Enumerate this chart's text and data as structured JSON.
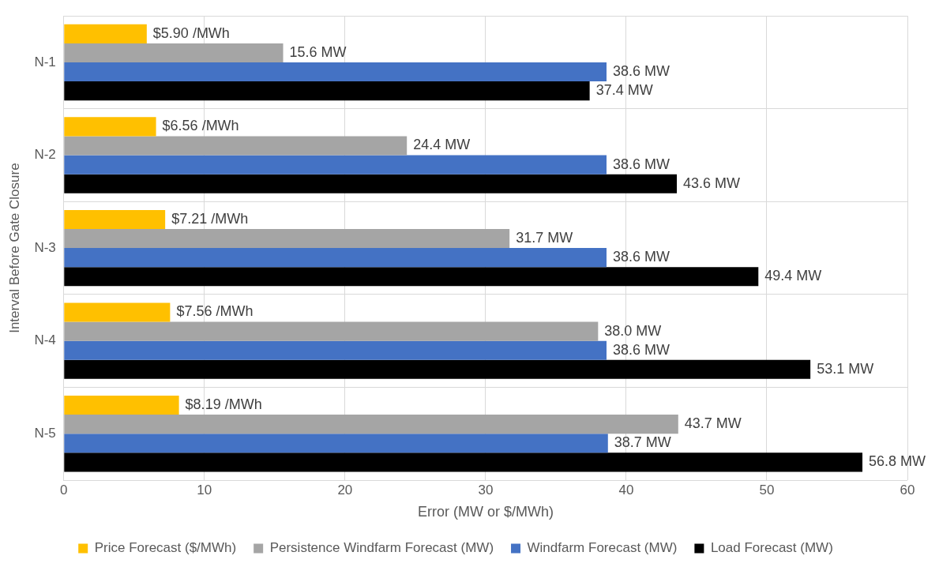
{
  "chart_data": {
    "type": "bar",
    "orientation": "horizontal",
    "xlabel": "Error (MW or $/MWh)",
    "ylabel": "Interval Before Gate Closure",
    "categories": [
      "N-1",
      "N-2",
      "N-3",
      "N-4",
      "N-5"
    ],
    "xlim": [
      0,
      60
    ],
    "xticks": [
      0,
      10,
      20,
      30,
      40,
      50,
      60
    ],
    "grid": true,
    "legend": "bottom",
    "series": [
      {
        "name": "Price Forecast ($/MWh)",
        "color": "#ffc000",
        "values": [
          5.9,
          6.56,
          7.21,
          7.56,
          8.19
        ],
        "value_labels": [
          "$5.90 /MWh",
          "$6.56 /MWh",
          "$7.21 /MWh",
          "$7.56 /MWh",
          "$8.19 /MWh"
        ]
      },
      {
        "name": "Persistence Windfarm Forecast (MW)",
        "color": "#a5a5a5",
        "values": [
          15.6,
          24.4,
          31.7,
          38.0,
          43.7
        ],
        "value_labels": [
          "15.6 MW",
          "24.4 MW",
          "31.7 MW",
          "38.0 MW",
          "43.7 MW"
        ]
      },
      {
        "name": "Windfarm Forecast (MW)",
        "color": "#4472c4",
        "values": [
          38.6,
          38.6,
          38.6,
          38.6,
          38.7
        ],
        "value_labels": [
          "38.6 MW",
          "38.6 MW",
          "38.6 MW",
          "38.6 MW",
          "38.7 MW"
        ]
      },
      {
        "name": "Load Forecast (MW)",
        "color": "#000000",
        "values": [
          37.4,
          43.6,
          49.4,
          53.1,
          56.8
        ],
        "value_labels": [
          "37.4 MW",
          "43.6 MW",
          "49.4 MW",
          "53.1 MW",
          "56.8 MW"
        ]
      }
    ]
  }
}
